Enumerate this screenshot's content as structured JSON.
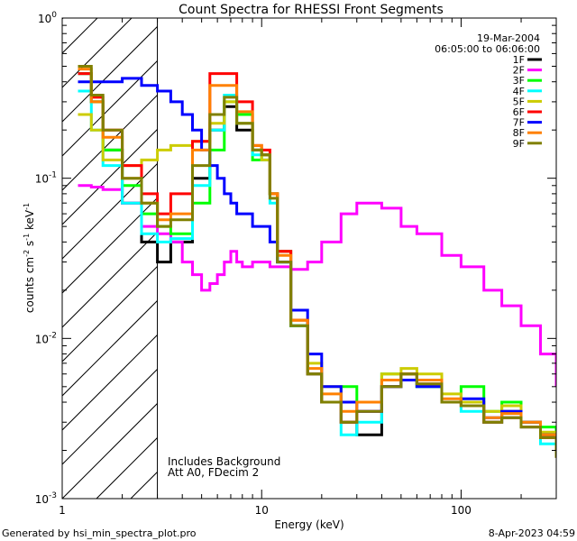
{
  "chart_data": {
    "type": "line",
    "title": "Count Spectra for RHESSI Front Segments",
    "xlabel": "Energy (keV)",
    "ylabel_parts": {
      "base": "counts cm",
      "exp1": "-2",
      "mid": " s",
      "exp2": "-1",
      "tail": " keV",
      "exp3": "-1"
    },
    "x_scale": "log",
    "y_scale": "log",
    "xlim": [
      1,
      300
    ],
    "ylim": [
      0.001,
      1
    ],
    "x_ticks": [
      {
        "value": 1,
        "label": "1"
      },
      {
        "value": 10,
        "label": "10"
      },
      {
        "value": 100,
        "label": "100"
      }
    ],
    "y_ticks": [
      {
        "value": 0.001,
        "base": "10",
        "exp": "-3"
      },
      {
        "value": 0.01,
        "base": "10",
        "exp": "-2"
      },
      {
        "value": 0.1,
        "base": "10",
        "exp": "-1"
      },
      {
        "value": 1,
        "base": "10",
        "exp": "0"
      }
    ],
    "hatched_region": [
      1,
      3
    ],
    "legend": {
      "date": "19-Mar-2004",
      "time_range": "06:05:00 to 06:06:00",
      "placement": "top-right"
    },
    "annotations": [
      "Includes Background",
      "Att A0, FDecim 2"
    ],
    "series": [
      {
        "name": "1F",
        "color": "#000000",
        "x": [
          1.2,
          1.4,
          1.6,
          2.0,
          2.5,
          3.0,
          3.5,
          4.5,
          5.5,
          6.5,
          7.5,
          9,
          10,
          11,
          12,
          14,
          17,
          20,
          25,
          30,
          40,
          50,
          60,
          80,
          100,
          130,
          160,
          200,
          250,
          300
        ],
        "y": [
          0.45,
          0.3,
          0.15,
          0.07,
          0.04,
          0.03,
          0.04,
          0.1,
          0.2,
          0.28,
          0.2,
          0.15,
          0.14,
          0.08,
          0.035,
          0.012,
          0.006,
          0.004,
          0.003,
          0.0025,
          0.005,
          0.006,
          0.005,
          0.004,
          0.004,
          0.003,
          0.0035,
          0.003,
          0.0025,
          0.0018
        ]
      },
      {
        "name": "2F",
        "color": "#ff00ff",
        "x": [
          1.2,
          1.4,
          1.6,
          2.0,
          2.5,
          3.0,
          3.5,
          4.0,
          4.5,
          5.0,
          5.5,
          6.0,
          6.5,
          7.0,
          7.5,
          8,
          9,
          10,
          11,
          12,
          14,
          17,
          20,
          25,
          30,
          40,
          50,
          60,
          80,
          100,
          130,
          160,
          200,
          250,
          300
        ],
        "y": [
          0.09,
          0.088,
          0.085,
          0.07,
          0.05,
          0.045,
          0.04,
          0.03,
          0.025,
          0.02,
          0.022,
          0.025,
          0.03,
          0.035,
          0.03,
          0.028,
          0.03,
          0.03,
          0.028,
          0.028,
          0.027,
          0.03,
          0.04,
          0.06,
          0.07,
          0.065,
          0.05,
          0.045,
          0.033,
          0.028,
          0.02,
          0.016,
          0.012,
          0.008,
          0.005
        ]
      },
      {
        "name": "3F",
        "color": "#00ff00",
        "x": [
          1.2,
          1.4,
          1.6,
          2.0,
          2.5,
          3.0,
          3.5,
          4.5,
          5.5,
          6.5,
          7.5,
          9,
          10,
          11,
          12,
          14,
          17,
          20,
          25,
          30,
          40,
          50,
          60,
          80,
          100,
          130,
          160,
          200,
          250,
          300
        ],
        "y": [
          0.45,
          0.3,
          0.15,
          0.09,
          0.06,
          0.05,
          0.045,
          0.07,
          0.15,
          0.3,
          0.25,
          0.13,
          0.14,
          0.08,
          0.03,
          0.012,
          0.006,
          0.004,
          0.005,
          0.004,
          0.006,
          0.006,
          0.005,
          0.004,
          0.005,
          0.0035,
          0.004,
          0.003,
          0.0028,
          0.002
        ]
      },
      {
        "name": "4F",
        "color": "#00ffff",
        "x": [
          1.2,
          1.4,
          1.6,
          2.0,
          2.5,
          3.0,
          3.5,
          4.5,
          5.5,
          6.5,
          7.5,
          9,
          10,
          11,
          12,
          14,
          17,
          20,
          25,
          30,
          40,
          50,
          60,
          80,
          100,
          130,
          160,
          200,
          250,
          300
        ],
        "y": [
          0.35,
          0.2,
          0.12,
          0.07,
          0.045,
          0.04,
          0.042,
          0.09,
          0.2,
          0.33,
          0.22,
          0.14,
          0.13,
          0.07,
          0.03,
          0.012,
          0.006,
          0.004,
          0.0025,
          0.003,
          0.005,
          0.0055,
          0.005,
          0.004,
          0.0035,
          0.003,
          0.0032,
          0.0028,
          0.0022,
          0.0018
        ]
      },
      {
        "name": "5F",
        "color": "#cccc00",
        "x": [
          1.2,
          1.4,
          1.6,
          2.0,
          2.5,
          3.0,
          3.5,
          4.5,
          5.5,
          6.5,
          7.5,
          9,
          10,
          11,
          12,
          14,
          17,
          20,
          25,
          30,
          40,
          50,
          60,
          80,
          100,
          130,
          160,
          200,
          250,
          300
        ],
        "y": [
          0.25,
          0.2,
          0.13,
          0.12,
          0.13,
          0.15,
          0.16,
          0.17,
          0.22,
          0.3,
          0.22,
          0.15,
          0.13,
          0.08,
          0.035,
          0.013,
          0.007,
          0.005,
          0.004,
          0.004,
          0.006,
          0.0065,
          0.006,
          0.0045,
          0.004,
          0.0035,
          0.0038,
          0.003,
          0.0026,
          0.002
        ]
      },
      {
        "name": "6F",
        "color": "#ff0000",
        "x": [
          1.2,
          1.4,
          1.6,
          2.0,
          2.5,
          3.0,
          3.5,
          4.5,
          5.5,
          6.5,
          7.5,
          9,
          10,
          11,
          12,
          14,
          17,
          20,
          25,
          30,
          40,
          50,
          60,
          80,
          100,
          130,
          160,
          200,
          250,
          300
        ],
        "y": [
          0.45,
          0.32,
          0.2,
          0.12,
          0.08,
          0.06,
          0.08,
          0.17,
          0.45,
          0.45,
          0.3,
          0.16,
          0.15,
          0.08,
          0.035,
          0.013,
          0.006,
          0.004,
          0.003,
          0.0035,
          0.005,
          0.006,
          0.0052,
          0.004,
          0.0038,
          0.003,
          0.0032,
          0.0028,
          0.0024,
          0.0018
        ]
      },
      {
        "name": "7F",
        "color": "#0000ff",
        "x": [
          1.2,
          1.4,
          1.6,
          2.0,
          2.5,
          3.0,
          3.5,
          4.0,
          4.5,
          5.0,
          5.5,
          6.0,
          6.5,
          7.0,
          7.5,
          8,
          9,
          10,
          11,
          12,
          14,
          17,
          20,
          25,
          30,
          40,
          50,
          60,
          80,
          100,
          130,
          160,
          200,
          250,
          300
        ],
        "y": [
          0.4,
          0.4,
          0.4,
          0.42,
          0.38,
          0.35,
          0.3,
          0.25,
          0.2,
          0.15,
          0.12,
          0.1,
          0.08,
          0.07,
          0.06,
          0.06,
          0.05,
          0.05,
          0.04,
          0.03,
          0.015,
          0.008,
          0.005,
          0.004,
          0.0035,
          0.005,
          0.0055,
          0.005,
          0.004,
          0.0042,
          0.0032,
          0.0035,
          0.003,
          0.0025,
          0.002
        ]
      },
      {
        "name": "8F",
        "color": "#ff8000",
        "x": [
          1.2,
          1.4,
          1.6,
          2.0,
          2.5,
          3.0,
          3.5,
          4.5,
          5.5,
          6.5,
          7.5,
          9,
          10,
          11,
          12,
          14,
          17,
          20,
          25,
          30,
          40,
          50,
          60,
          80,
          100,
          130,
          160,
          200,
          250,
          300
        ],
        "y": [
          0.48,
          0.3,
          0.18,
          0.1,
          0.07,
          0.055,
          0.06,
          0.15,
          0.38,
          0.38,
          0.26,
          0.16,
          0.14,
          0.08,
          0.033,
          0.013,
          0.0065,
          0.0045,
          0.0035,
          0.004,
          0.0055,
          0.006,
          0.0055,
          0.0042,
          0.0038,
          0.0032,
          0.0034,
          0.003,
          0.0025,
          0.0019
        ]
      },
      {
        "name": "9F",
        "color": "#808000",
        "x": [
          1.2,
          1.4,
          1.6,
          2.0,
          2.5,
          3.0,
          3.5,
          4.5,
          5.5,
          6.5,
          7.5,
          9,
          10,
          11,
          12,
          14,
          17,
          20,
          25,
          30,
          40,
          50,
          60,
          80,
          100,
          130,
          160,
          200,
          250,
          300
        ],
        "y": [
          0.5,
          0.33,
          0.2,
          0.1,
          0.07,
          0.05,
          0.055,
          0.12,
          0.25,
          0.32,
          0.22,
          0.15,
          0.14,
          0.075,
          0.03,
          0.012,
          0.006,
          0.004,
          0.003,
          0.0035,
          0.005,
          0.006,
          0.0052,
          0.004,
          0.0038,
          0.003,
          0.0032,
          0.0028,
          0.0024,
          0.0018
        ]
      }
    ]
  },
  "footer": {
    "left": "Generated by hsi_min_spectra_plot.pro",
    "right": "8-Apr-2023 04:59"
  }
}
